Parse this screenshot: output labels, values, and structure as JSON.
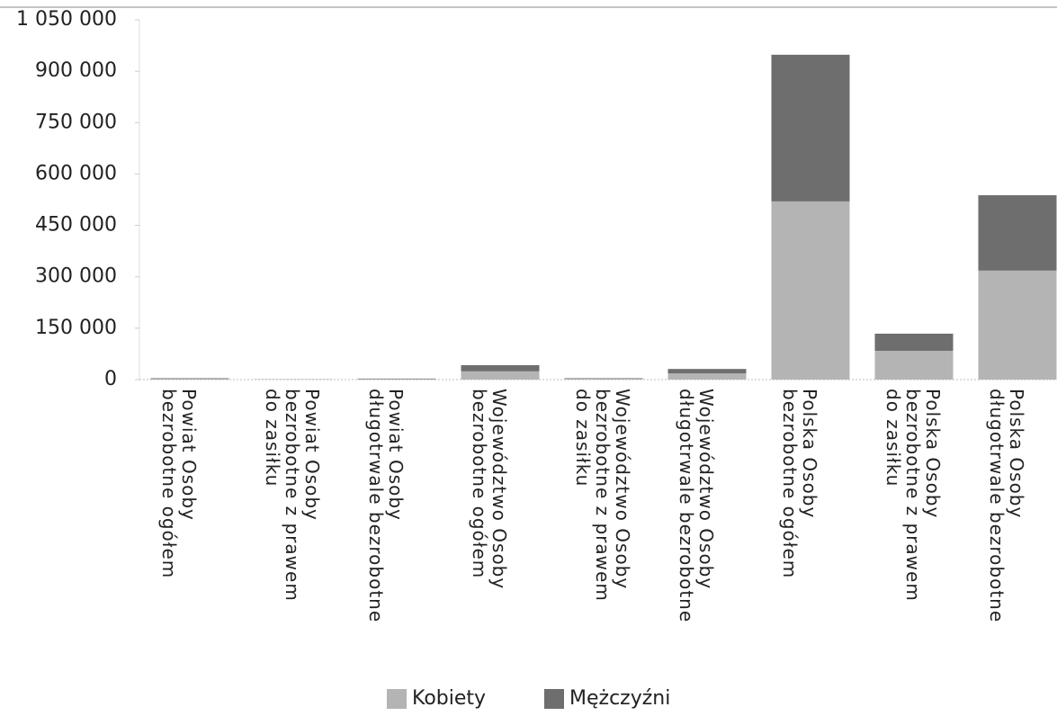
{
  "chart_data": {
    "type": "stacked-bar",
    "categories": [
      "Powiat Osoby bezrobotne ogółem",
      "Powiat Osoby bezrobotne z prawem do zasiłku",
      "Powiat Osoby długotrwale bezrobotne",
      "Województwo Osoby bezrobotne ogółem",
      "Województwo Osoby bezrobotne z prawem do zasiłku",
      "Województwo Osoby długotrwale bezrobotne",
      "Polska Osoby bezrobotne ogółem",
      "Polska Osoby bezrobotne z prawem do zasiłku",
      "Polska Osoby długotrwale bezrobotne"
    ],
    "series": [
      {
        "name": "Kobiety",
        "color": "#b4b4b4",
        "values": [
          2000,
          500,
          1500,
          24000,
          2000,
          18000,
          520000,
          84000,
          318000
        ]
      },
      {
        "name": "Mężczyźni",
        "color": "#6e6e6e",
        "values": [
          2000,
          500,
          1500,
          18000,
          2000,
          13000,
          428000,
          50000,
          220000
        ]
      }
    ],
    "ylim": [
      0,
      1050000
    ],
    "yticks": [
      0,
      {
        "value": 150000,
        "label": "150 000"
      },
      {
        "value": 300000,
        "label": "300 000"
      },
      {
        "value": 450000,
        "label": "450 000"
      },
      {
        "value": 600000,
        "label": "600 000"
      },
      {
        "value": 750000,
        "label": "750 000"
      },
      {
        "value": 900000,
        "label": "900 000"
      },
      {
        "value": 1050000,
        "label": "1 050 000"
      }
    ],
    "legend": "bottom"
  }
}
